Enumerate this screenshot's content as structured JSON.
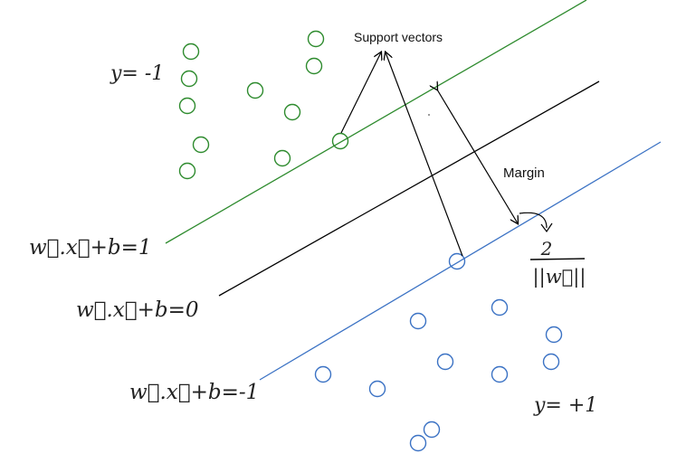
{
  "annotations": {
    "support_vectors": "Support vectors",
    "margin": "Margin"
  },
  "class_labels": {
    "negative": "y= -1",
    "positive": "y= +1"
  },
  "hyperplanes": {
    "positive_margin": "w⃗.x⃗+b=1",
    "decision_boundary": "w⃗.x⃗+b=0",
    "negative_margin": "w⃗.x⃗+b=-1"
  },
  "margin_formula": {
    "numerator": "2",
    "denominator": "||w⃗||"
  },
  "colors": {
    "negative_class": "#2e8b2e",
    "positive_class": "#3b72c4",
    "boundary": "#000000"
  }
}
